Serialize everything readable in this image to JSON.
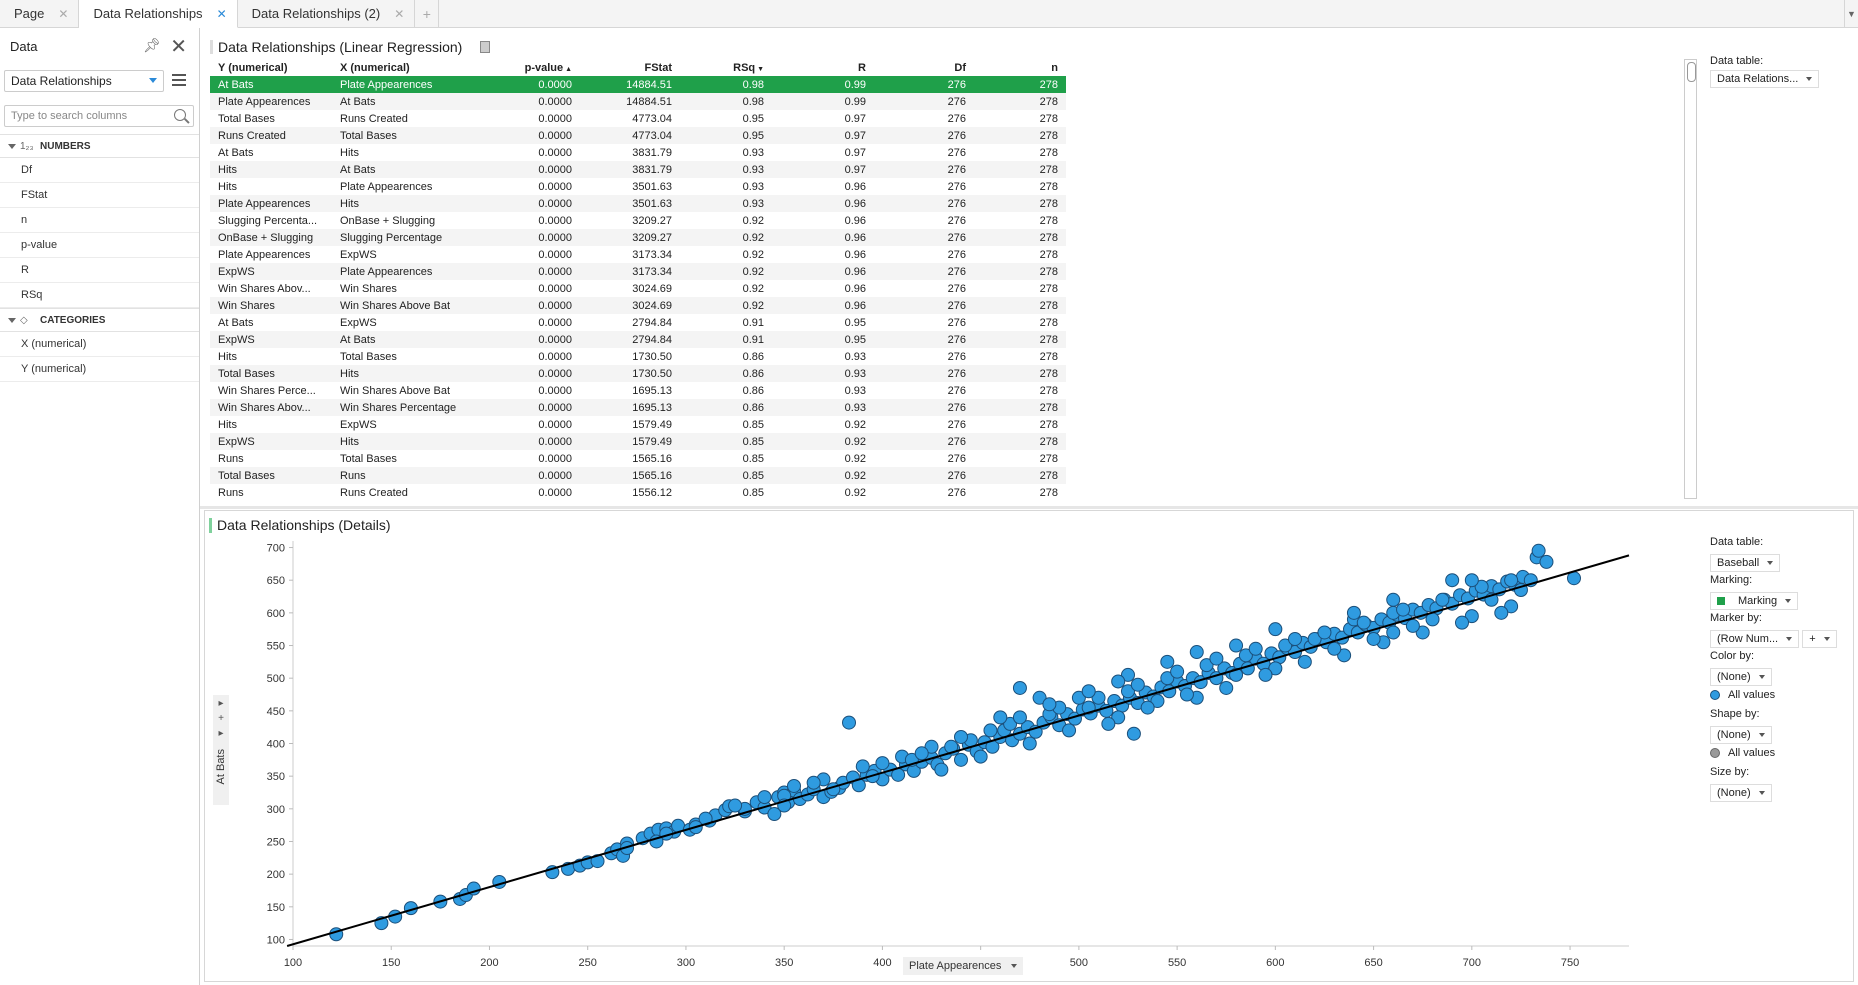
{
  "tabs": [
    {
      "label": "Page",
      "active": false
    },
    {
      "label": "Data Relationships",
      "active": true
    },
    {
      "label": "Data Relationships (2)",
      "active": false
    }
  ],
  "left_panel": {
    "title": "Data",
    "table_select": "Data Relationships",
    "search_placeholder": "Type to search columns",
    "groups": [
      {
        "label": "NUMBERS",
        "icon": "numbers-icon",
        "glyph": "1₂₃",
        "items": [
          "Df",
          "FStat",
          "n",
          "p-value",
          "R",
          "RSq"
        ]
      },
      {
        "label": "CATEGORIES",
        "icon": "categories-icon",
        "glyph": "◇",
        "items": [
          "X (numerical)",
          "Y (numerical)"
        ]
      }
    ]
  },
  "regression": {
    "title": "Data Relationships (Linear Regression)",
    "columns": [
      "Y (numerical)",
      "X (numerical)",
      "p-value",
      "FStat",
      "RSq",
      "R",
      "Df",
      "n"
    ],
    "rows": [
      [
        "At Bats",
        "Plate Appearences",
        "0.0000",
        "14884.51",
        "0.98",
        "0.99",
        "276",
        "278"
      ],
      [
        "Plate Appearences",
        "At Bats",
        "0.0000",
        "14884.51",
        "0.98",
        "0.99",
        "276",
        "278"
      ],
      [
        "Total Bases",
        "Runs Created",
        "0.0000",
        "4773.04",
        "0.95",
        "0.97",
        "276",
        "278"
      ],
      [
        "Runs Created",
        "Total Bases",
        "0.0000",
        "4773.04",
        "0.95",
        "0.97",
        "276",
        "278"
      ],
      [
        "At Bats",
        "Hits",
        "0.0000",
        "3831.79",
        "0.93",
        "0.97",
        "276",
        "278"
      ],
      [
        "Hits",
        "At Bats",
        "0.0000",
        "3831.79",
        "0.93",
        "0.97",
        "276",
        "278"
      ],
      [
        "Hits",
        "Plate Appearences",
        "0.0000",
        "3501.63",
        "0.93",
        "0.96",
        "276",
        "278"
      ],
      [
        "Plate Appearences",
        "Hits",
        "0.0000",
        "3501.63",
        "0.93",
        "0.96",
        "276",
        "278"
      ],
      [
        "Slugging Percenta...",
        "OnBase + Slugging",
        "0.0000",
        "3209.27",
        "0.92",
        "0.96",
        "276",
        "278"
      ],
      [
        "OnBase + Slugging",
        "Slugging Percentage",
        "0.0000",
        "3209.27",
        "0.92",
        "0.96",
        "276",
        "278"
      ],
      [
        "Plate Appearences",
        "ExpWS",
        "0.0000",
        "3173.34",
        "0.92",
        "0.96",
        "276",
        "278"
      ],
      [
        "ExpWS",
        "Plate Appearences",
        "0.0000",
        "3173.34",
        "0.92",
        "0.96",
        "276",
        "278"
      ],
      [
        "Win Shares Abov...",
        "Win Shares",
        "0.0000",
        "3024.69",
        "0.92",
        "0.96",
        "276",
        "278"
      ],
      [
        "Win Shares",
        "Win Shares Above Bat",
        "0.0000",
        "3024.69",
        "0.92",
        "0.96",
        "276",
        "278"
      ],
      [
        "At Bats",
        "ExpWS",
        "0.0000",
        "2794.84",
        "0.91",
        "0.95",
        "276",
        "278"
      ],
      [
        "ExpWS",
        "At Bats",
        "0.0000",
        "2794.84",
        "0.91",
        "0.95",
        "276",
        "278"
      ],
      [
        "Hits",
        "Total Bases",
        "0.0000",
        "1730.50",
        "0.86",
        "0.93",
        "276",
        "278"
      ],
      [
        "Total Bases",
        "Hits",
        "0.0000",
        "1730.50",
        "0.86",
        "0.93",
        "276",
        "278"
      ],
      [
        "Win Shares Perce...",
        "Win Shares Above Bat",
        "0.0000",
        "1695.13",
        "0.86",
        "0.93",
        "276",
        "278"
      ],
      [
        "Win Shares Abov...",
        "Win Shares Percentage",
        "0.0000",
        "1695.13",
        "0.86",
        "0.93",
        "276",
        "278"
      ],
      [
        "Hits",
        "ExpWS",
        "0.0000",
        "1579.49",
        "0.85",
        "0.92",
        "276",
        "278"
      ],
      [
        "ExpWS",
        "Hits",
        "0.0000",
        "1579.49",
        "0.85",
        "0.92",
        "276",
        "278"
      ],
      [
        "Runs",
        "Total Bases",
        "0.0000",
        "1565.16",
        "0.85",
        "0.92",
        "276",
        "278"
      ],
      [
        "Total Bases",
        "Runs",
        "0.0000",
        "1565.16",
        "0.85",
        "0.92",
        "276",
        "278"
      ],
      [
        "Runs",
        "Runs Created",
        "0.0000",
        "1556.12",
        "0.85",
        "0.92",
        "276",
        "278"
      ]
    ],
    "selected_row": 0,
    "legend": {
      "data_table_label": "Data table:",
      "data_table_value": "Data Relations..."
    }
  },
  "details": {
    "title": "Data Relationships (Details)",
    "x_axis_label": "Plate Appearences",
    "y_axis_label": "At Bats",
    "legend": {
      "data_table_label": "Data table:",
      "data_table_value": "Baseball",
      "marking_label": "Marking:",
      "marking_value": "Marking",
      "marking_color": "#1fa04a",
      "marker_by_label": "Marker by:",
      "marker_by_value": "(Row Num...",
      "color_by_label": "Color by:",
      "color_by_value": "(None)",
      "color_all": "All values",
      "marker_color": "#2f9be0",
      "shape_by_label": "Shape by:",
      "shape_by_value": "(None)",
      "shape_all": "All values",
      "size_by_label": "Size by:",
      "size_by_value": "(None)"
    }
  },
  "chart_data": {
    "type": "scatter",
    "title": "",
    "xlabel": "Plate Appearences",
    "ylabel": "At Bats",
    "xlim": [
      100,
      780
    ],
    "ylim": [
      90,
      710
    ],
    "xticks": [
      100,
      150,
      200,
      250,
      300,
      350,
      400,
      450,
      500,
      550,
      600,
      650,
      700,
      750
    ],
    "yticks": [
      100,
      150,
      200,
      250,
      300,
      350,
      400,
      450,
      500,
      550,
      600,
      650,
      700
    ],
    "fit_line": {
      "x": [
        97,
        780
      ],
      "y": [
        90,
        688
      ]
    },
    "points": [
      [
        122,
        108
      ],
      [
        145,
        125
      ],
      [
        152,
        135
      ],
      [
        160,
        148
      ],
      [
        175,
        158
      ],
      [
        185,
        162
      ],
      [
        188,
        168
      ],
      [
        192,
        178
      ],
      [
        205,
        188
      ],
      [
        232,
        203
      ],
      [
        240,
        208
      ],
      [
        246,
        213
      ],
      [
        250,
        218
      ],
      [
        255,
        220
      ],
      [
        262,
        232
      ],
      [
        265,
        238
      ],
      [
        268,
        228
      ],
      [
        270,
        247
      ],
      [
        278,
        255
      ],
      [
        282,
        262
      ],
      [
        286,
        268
      ],
      [
        290,
        270
      ],
      [
        294,
        265
      ],
      [
        296,
        274
      ],
      [
        302,
        268
      ],
      [
        305,
        276
      ],
      [
        312,
        282
      ],
      [
        315,
        290
      ],
      [
        320,
        298
      ],
      [
        322,
        304
      ],
      [
        330,
        296
      ],
      [
        336,
        310
      ],
      [
        340,
        302
      ],
      [
        345,
        292
      ],
      [
        347,
        318
      ],
      [
        350,
        325
      ],
      [
        352,
        310
      ],
      [
        355,
        328
      ],
      [
        358,
        315
      ],
      [
        362,
        322
      ],
      [
        365,
        330
      ],
      [
        370,
        318
      ],
      [
        374,
        326
      ],
      [
        378,
        332
      ],
      [
        380,
        340
      ],
      [
        385,
        348
      ],
      [
        388,
        336
      ],
      [
        392,
        352
      ],
      [
        396,
        358
      ],
      [
        400,
        345
      ],
      [
        404,
        360
      ],
      [
        408,
        352
      ],
      [
        412,
        368
      ],
      [
        416,
        358
      ],
      [
        420,
        372
      ],
      [
        425,
        378
      ],
      [
        428,
        368
      ],
      [
        432,
        385
      ],
      [
        436,
        392
      ],
      [
        440,
        375
      ],
      [
        444,
        398
      ],
      [
        448,
        388
      ],
      [
        452,
        402
      ],
      [
        456,
        395
      ],
      [
        460,
        410
      ],
      [
        462,
        420
      ],
      [
        466,
        405
      ],
      [
        470,
        415
      ],
      [
        474,
        425
      ],
      [
        478,
        418
      ],
      [
        482,
        432
      ],
      [
        486,
        440
      ],
      [
        490,
        428
      ],
      [
        494,
        445
      ],
      [
        498,
        438
      ],
      [
        502,
        452
      ],
      [
        506,
        446
      ],
      [
        510,
        458
      ],
      [
        514,
        450
      ],
      [
        518,
        465
      ],
      [
        522,
        458
      ],
      [
        526,
        470
      ],
      [
        530,
        462
      ],
      [
        534,
        478
      ],
      [
        538,
        472
      ],
      [
        542,
        486
      ],
      [
        546,
        480
      ],
      [
        550,
        495
      ],
      [
        554,
        488
      ],
      [
        558,
        500
      ],
      [
        562,
        494
      ],
      [
        566,
        508
      ],
      [
        570,
        500
      ],
      [
        574,
        515
      ],
      [
        578,
        508
      ],
      [
        582,
        522
      ],
      [
        586,
        515
      ],
      [
        590,
        530
      ],
      [
        594,
        522
      ],
      [
        598,
        538
      ],
      [
        602,
        532
      ],
      [
        606,
        546
      ],
      [
        610,
        540
      ],
      [
        614,
        554
      ],
      [
        618,
        548
      ],
      [
        622,
        560
      ],
      [
        626,
        555
      ],
      [
        630,
        568
      ],
      [
        634,
        562
      ],
      [
        638,
        575
      ],
      [
        642,
        570
      ],
      [
        646,
        582
      ],
      [
        650,
        577
      ],
      [
        654,
        590
      ],
      [
        658,
        585
      ],
      [
        662,
        597
      ],
      [
        666,
        592
      ],
      [
        670,
        605
      ],
      [
        674,
        600
      ],
      [
        678,
        612
      ],
      [
        682,
        607
      ],
      [
        686,
        620
      ],
      [
        690,
        614
      ],
      [
        694,
        627
      ],
      [
        698,
        622
      ],
      [
        702,
        634
      ],
      [
        706,
        628
      ],
      [
        710,
        641
      ],
      [
        714,
        636
      ],
      [
        718,
        648
      ],
      [
        722,
        643
      ],
      [
        726,
        655
      ],
      [
        730,
        650
      ],
      [
        733,
        685
      ],
      [
        734,
        695
      ],
      [
        738,
        678
      ],
      [
        752,
        653
      ],
      [
        383,
        432
      ],
      [
        528,
        415
      ],
      [
        470,
        485
      ],
      [
        480,
        470
      ],
      [
        500,
        470
      ],
      [
        520,
        440
      ],
      [
        540,
        465
      ],
      [
        560,
        470
      ],
      [
        580,
        505
      ],
      [
        600,
        515
      ],
      [
        620,
        560
      ],
      [
        640,
        590
      ],
      [
        660,
        600
      ],
      [
        680,
        590
      ],
      [
        700,
        595
      ],
      [
        720,
        610
      ],
      [
        430,
        360
      ],
      [
        410,
        380
      ],
      [
        390,
        365
      ],
      [
        370,
        345
      ],
      [
        350,
        320
      ],
      [
        330,
        300
      ],
      [
        310,
        285
      ],
      [
        290,
        262
      ],
      [
        270,
        240
      ],
      [
        450,
        380
      ],
      [
        475,
        400
      ],
      [
        495,
        420
      ],
      [
        515,
        430
      ],
      [
        535,
        455
      ],
      [
        555,
        475
      ],
      [
        575,
        485
      ],
      [
        595,
        505
      ],
      [
        615,
        525
      ],
      [
        635,
        535
      ],
      [
        655,
        555
      ],
      [
        675,
        570
      ],
      [
        695,
        585
      ],
      [
        715,
        600
      ],
      [
        350,
        305
      ],
      [
        365,
        340
      ],
      [
        425,
        395
      ],
      [
        445,
        405
      ],
      [
        465,
        430
      ],
      [
        485,
        445
      ],
      [
        505,
        455
      ],
      [
        525,
        480
      ],
      [
        545,
        500
      ],
      [
        565,
        520
      ],
      [
        585,
        535
      ],
      [
        605,
        550
      ],
      [
        625,
        570
      ],
      [
        645,
        585
      ],
      [
        665,
        605
      ],
      [
        685,
        620
      ],
      [
        705,
        640
      ],
      [
        720,
        650
      ],
      [
        640,
        600
      ],
      [
        660,
        620
      ],
      [
        650,
        560
      ],
      [
        670,
        580
      ],
      [
        610,
        560
      ],
      [
        590,
        545
      ],
      [
        570,
        530
      ],
      [
        550,
        510
      ],
      [
        530,
        490
      ],
      [
        510,
        470
      ],
      [
        490,
        455
      ],
      [
        470,
        440
      ],
      [
        455,
        420
      ],
      [
        435,
        395
      ],
      [
        415,
        375
      ],
      [
        395,
        350
      ],
      [
        375,
        330
      ],
      [
        355,
        335
      ],
      [
        340,
        318
      ],
      [
        325,
        305
      ],
      [
        305,
        272
      ],
      [
        285,
        250
      ],
      [
        690,
        650
      ],
      [
        700,
        650
      ],
      [
        710,
        620
      ],
      [
        725,
        635
      ],
      [
        660,
        570
      ],
      [
        630,
        545
      ],
      [
        600,
        575
      ],
      [
        580,
        550
      ],
      [
        560,
        540
      ],
      [
        545,
        525
      ],
      [
        525,
        505
      ],
      [
        520,
        495
      ],
      [
        505,
        480
      ],
      [
        485,
        460
      ],
      [
        460,
        440
      ],
      [
        440,
        410
      ],
      [
        420,
        385
      ],
      [
        400,
        370
      ]
    ]
  }
}
